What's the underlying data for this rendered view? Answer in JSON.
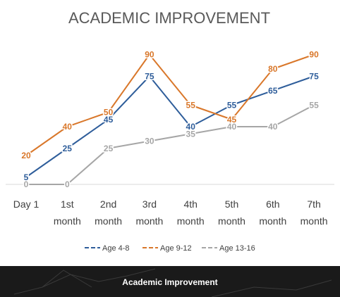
{
  "chart_data": {
    "type": "line",
    "title": "ACADEMIC IMPROVEMENT",
    "categories": [
      [
        "Day 1"
      ],
      [
        "1st",
        "month"
      ],
      [
        "2nd",
        "month"
      ],
      [
        "3rd",
        "month"
      ],
      [
        "4th",
        "month"
      ],
      [
        "5th",
        "month"
      ],
      [
        "6th",
        "month"
      ],
      [
        "7th",
        "month"
      ]
    ],
    "series": [
      {
        "name": "Age 4-8",
        "color": "#2e5d9a",
        "values": [
          5,
          25,
          45,
          75,
          40,
          55,
          65,
          75
        ]
      },
      {
        "name": "Age 9-12",
        "color": "#d9772a",
        "values": [
          20,
          40,
          50,
          90,
          55,
          45,
          80,
          90
        ]
      },
      {
        "name": "Age 13-16",
        "color": "#a6a6a6",
        "values": [
          0,
          0,
          25,
          30,
          35,
          40,
          40,
          55
        ]
      }
    ],
    "ylim": [
      0,
      100
    ],
    "grid": false,
    "legend_position": "bottom"
  },
  "caption": {
    "text": "Academic Improvement"
  }
}
